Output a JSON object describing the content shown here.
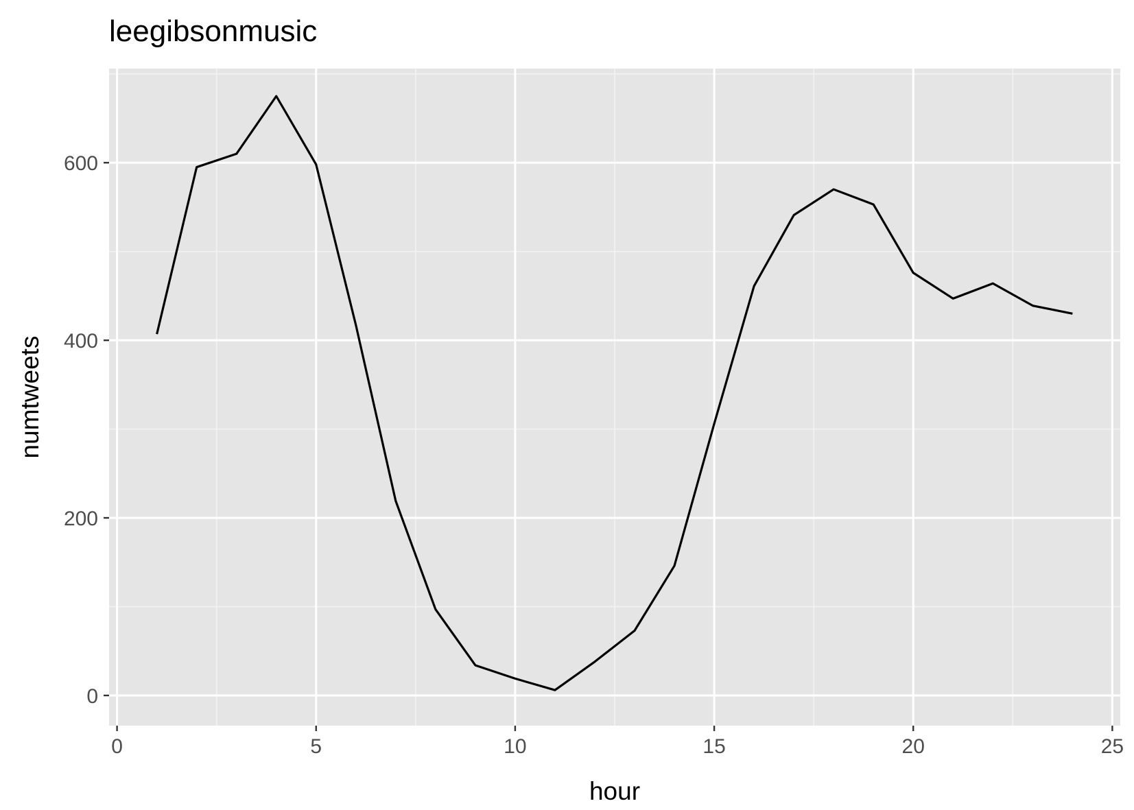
{
  "chart_data": {
    "type": "line",
    "title": "leegibsonmusic",
    "xlabel": "hour",
    "ylabel": "numtweets",
    "xlim": [
      -0.2,
      25.2
    ],
    "ylim": [
      -34,
      706
    ],
    "x_ticks": [
      0,
      5,
      10,
      15,
      20,
      25
    ],
    "x_tick_labels": [
      "0",
      "5",
      "10",
      "15",
      "20",
      "25"
    ],
    "y_ticks": [
      0,
      200,
      400,
      600
    ],
    "y_tick_labels": [
      "0",
      "200",
      "400",
      "600"
    ],
    "grid": true,
    "legend": "none",
    "colors": {
      "panel_background": "#e5e5e5",
      "grid_major": "#ffffff",
      "grid_minor": "#f2f2f2",
      "line": "#000000",
      "tick_label": "#4d4d4d"
    },
    "series": [
      {
        "x": [
          1,
          2,
          3,
          4,
          5,
          6,
          7,
          8,
          9,
          10,
          11,
          12,
          13,
          14,
          15,
          16,
          17,
          18,
          19,
          20,
          21,
          22,
          23,
          24
        ],
        "values": [
          407,
          595,
          610,
          675,
          598,
          417,
          219,
          97,
          34,
          19,
          6,
          38,
          73,
          146,
          306,
          461,
          541,
          570,
          553,
          476,
          447,
          464,
          439,
          430
        ]
      }
    ]
  }
}
